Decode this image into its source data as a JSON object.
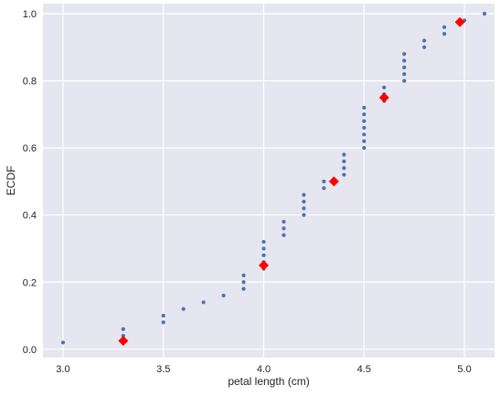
{
  "chart_data": {
    "type": "scatter",
    "xlabel": "petal length (cm)",
    "ylabel": "ECDF",
    "xlim": [
      2.9,
      5.15
    ],
    "ylim": [
      -0.025,
      1.03
    ],
    "xticks": [
      "3.0",
      "3.5",
      "4.0",
      "4.5",
      "5.0"
    ],
    "yticks": [
      "0.0",
      "0.2",
      "0.4",
      "0.6",
      "0.8",
      "1.0"
    ],
    "grid": true,
    "background": "#e6e6f0",
    "series": [
      {
        "marker": "dot",
        "color": "#4c72b0",
        "points": [
          [
            3.0,
            0.02
          ],
          [
            3.3,
            0.04
          ],
          [
            3.3,
            0.06
          ],
          [
            3.5,
            0.08
          ],
          [
            3.5,
            0.1
          ],
          [
            3.6,
            0.12
          ],
          [
            3.7,
            0.14
          ],
          [
            3.8,
            0.16
          ],
          [
            3.9,
            0.18
          ],
          [
            3.9,
            0.2
          ],
          [
            3.9,
            0.22
          ],
          [
            4.0,
            0.24
          ],
          [
            4.0,
            0.26
          ],
          [
            4.0,
            0.28
          ],
          [
            4.0,
            0.3
          ],
          [
            4.0,
            0.32
          ],
          [
            4.1,
            0.34
          ],
          [
            4.1,
            0.36
          ],
          [
            4.1,
            0.38
          ],
          [
            4.2,
            0.4
          ],
          [
            4.2,
            0.42
          ],
          [
            4.2,
            0.44
          ],
          [
            4.2,
            0.46
          ],
          [
            4.3,
            0.48
          ],
          [
            4.3,
            0.5
          ],
          [
            4.4,
            0.52
          ],
          [
            4.4,
            0.54
          ],
          [
            4.4,
            0.56
          ],
          [
            4.4,
            0.58
          ],
          [
            4.5,
            0.6
          ],
          [
            4.5,
            0.62
          ],
          [
            4.5,
            0.64
          ],
          [
            4.5,
            0.66
          ],
          [
            4.5,
            0.68
          ],
          [
            4.5,
            0.7
          ],
          [
            4.5,
            0.72
          ],
          [
            4.6,
            0.74
          ],
          [
            4.6,
            0.76
          ],
          [
            4.6,
            0.78
          ],
          [
            4.7,
            0.8
          ],
          [
            4.7,
            0.82
          ],
          [
            4.7,
            0.84
          ],
          [
            4.7,
            0.86
          ],
          [
            4.7,
            0.88
          ],
          [
            4.8,
            0.9
          ],
          [
            4.8,
            0.92
          ],
          [
            4.9,
            0.94
          ],
          [
            4.9,
            0.96
          ],
          [
            5.0,
            0.98
          ],
          [
            5.1,
            1.0
          ]
        ]
      },
      {
        "marker": "diamond",
        "color": "#ff0000",
        "points": [
          [
            3.3,
            0.025
          ],
          [
            4.0,
            0.25
          ],
          [
            4.35,
            0.5
          ],
          [
            4.6,
            0.75
          ],
          [
            4.9775,
            0.975
          ]
        ]
      }
    ]
  }
}
